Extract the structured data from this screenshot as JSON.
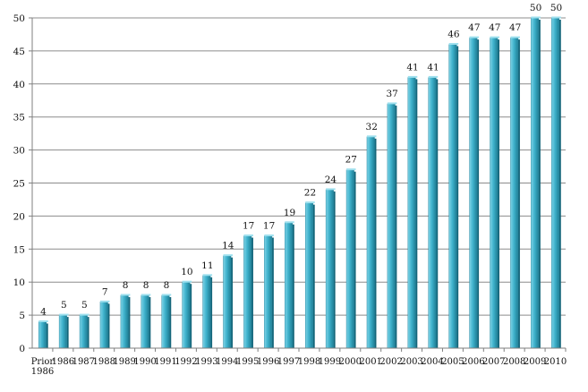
{
  "chart_data": {
    "type": "bar",
    "title": "",
    "xlabel": "",
    "ylabel": "",
    "ylim": [
      0,
      50
    ],
    "yticks": [
      0,
      5,
      10,
      15,
      20,
      25,
      30,
      35,
      40,
      45,
      50
    ],
    "grid": true,
    "categories": [
      "Prior 1986",
      "1986",
      "1987",
      "1988",
      "1989",
      "1990",
      "1991",
      "1992",
      "1993",
      "1994",
      "1995",
      "1996",
      "1997",
      "1998",
      "1999",
      "2000",
      "2001",
      "2002",
      "2003",
      "2004",
      "2005",
      "2006",
      "2007",
      "2008",
      "2009",
      "2010"
    ],
    "values": [
      4,
      5,
      5,
      7,
      8,
      8,
      8,
      10,
      11,
      14,
      17,
      17,
      19,
      22,
      24,
      27,
      32,
      37,
      41,
      41,
      46,
      47,
      47,
      47,
      50,
      50
    ],
    "colors": {
      "bar_light": "#7fd3e6",
      "bar_mid": "#3fb2cc",
      "bar_dark": "#1f7f96",
      "grid": "#8c8c8c",
      "axis": "#7f7f7f"
    }
  }
}
